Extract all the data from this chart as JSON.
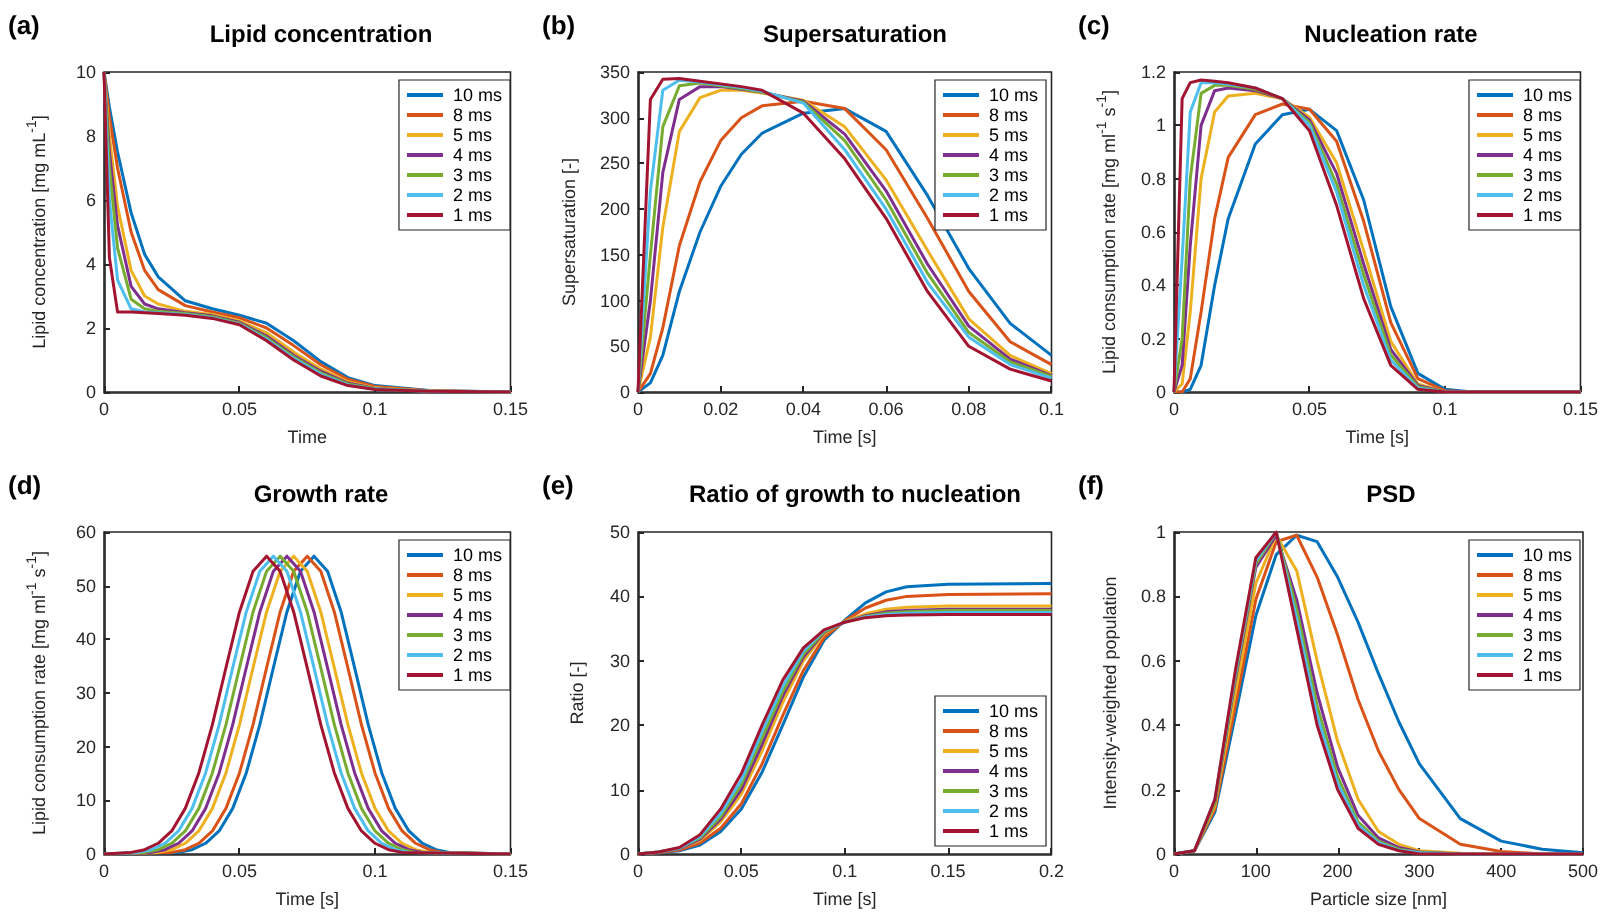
{
  "chart_data": [
    {
      "type": "line",
      "title": "Lipid concentration",
      "annotations": [
        "(a)"
      ],
      "xlabel": "Time",
      "ylabel": "Lipid concentration [mg mL$^{-1}$]",
      "xlim": [
        0,
        0.15
      ],
      "xticks": [
        0,
        0.05,
        0.1,
        0.15
      ],
      "ylim": [
        0,
        10
      ],
      "yticks": [
        0,
        2,
        4,
        6,
        8,
        10
      ],
      "legend": "top right",
      "x": [
        0,
        0.002,
        0.005,
        0.01,
        0.015,
        0.02,
        0.03,
        0.04,
        0.05,
        0.06,
        0.07,
        0.08,
        0.09,
        0.1,
        0.12,
        0.15
      ],
      "series": [
        {
          "name": "10 ms",
          "color": "#0072bd",
          "values": [
            10,
            8.9,
            7.5,
            5.6,
            4.3,
            3.6,
            2.85,
            2.6,
            2.4,
            2.15,
            1.6,
            0.95,
            0.45,
            0.2,
            0.05,
            0
          ]
        },
        {
          "name": "8 ms",
          "color": "#d95319",
          "values": [
            10,
            8.6,
            7,
            5,
            3.8,
            3.2,
            2.7,
            2.5,
            2.32,
            2.0,
            1.45,
            0.85,
            0.4,
            0.17,
            0.04,
            0
          ]
        },
        {
          "name": "5 ms",
          "color": "#edb120",
          "values": [
            10,
            8,
            5.8,
            3.8,
            3.0,
            2.75,
            2.52,
            2.42,
            2.22,
            1.85,
            1.25,
            0.72,
            0.32,
            0.13,
            0.03,
            0
          ]
        },
        {
          "name": "4 ms",
          "color": "#7e2f8e",
          "values": [
            10,
            7.5,
            5.2,
            3.3,
            2.75,
            2.6,
            2.48,
            2.38,
            2.18,
            1.75,
            1.15,
            0.65,
            0.28,
            0.11,
            0.02,
            0
          ]
        },
        {
          "name": "3 ms",
          "color": "#77ac30",
          "values": [
            10,
            7,
            4.5,
            2.9,
            2.6,
            2.52,
            2.45,
            2.35,
            2.15,
            1.7,
            1.1,
            0.6,
            0.25,
            0.1,
            0.02,
            0
          ]
        },
        {
          "name": "2 ms",
          "color": "#4dbeee",
          "values": [
            10,
            6,
            3.5,
            2.6,
            2.5,
            2.48,
            2.42,
            2.32,
            2.12,
            1.65,
            1.05,
            0.55,
            0.22,
            0.09,
            0.02,
            0
          ]
        },
        {
          "name": "1 ms",
          "color": "#a2142f",
          "values": [
            10,
            4.2,
            2.5,
            2.5,
            2.48,
            2.45,
            2.4,
            2.3,
            2.1,
            1.6,
            1.0,
            0.5,
            0.2,
            0.08,
            0.02,
            0
          ]
        }
      ]
    },
    {
      "type": "line",
      "title": "Supersaturation",
      "annotations": [
        "(b)"
      ],
      "xlabel": "Time [s]",
      "ylabel": "Supersaturation [-]",
      "xlim": [
        0,
        0.1
      ],
      "xticks": [
        0,
        0.02,
        0.04,
        0.06,
        0.08,
        0.1
      ],
      "ylim": [
        0,
        350
      ],
      "yticks": [
        0,
        50,
        100,
        150,
        200,
        250,
        300,
        350
      ],
      "legend": "top right",
      "x": [
        0,
        0.003,
        0.006,
        0.01,
        0.015,
        0.02,
        0.025,
        0.03,
        0.04,
        0.05,
        0.06,
        0.07,
        0.08,
        0.09,
        0.1
      ],
      "series": [
        {
          "name": "10 ms",
          "color": "#0072bd",
          "values": [
            0,
            10,
            40,
            110,
            175,
            225,
            260,
            283,
            305,
            310,
            285,
            215,
            135,
            75,
            40
          ]
        },
        {
          "name": "8 ms",
          "color": "#d95319",
          "values": [
            0,
            20,
            70,
            160,
            230,
            275,
            300,
            313,
            318,
            310,
            265,
            190,
            110,
            55,
            30
          ]
        },
        {
          "name": "5 ms",
          "color": "#edb120",
          "values": [
            0,
            60,
            180,
            285,
            322,
            330,
            330,
            327,
            319,
            290,
            232,
            155,
            80,
            40,
            20
          ]
        },
        {
          "name": "4 ms",
          "color": "#7e2f8e",
          "values": [
            0,
            100,
            240,
            320,
            334,
            334,
            331,
            328,
            318,
            282,
            220,
            140,
            72,
            36,
            18
          ]
        },
        {
          "name": "3 ms",
          "color": "#77ac30",
          "values": [
            0,
            150,
            290,
            335,
            338,
            335,
            332,
            328,
            317,
            275,
            210,
            130,
            65,
            33,
            17
          ]
        },
        {
          "name": "2 ms",
          "color": "#4dbeee",
          "values": [
            0,
            220,
            330,
            341,
            339,
            336,
            333,
            329,
            316,
            265,
            200,
            120,
            60,
            30,
            15
          ]
        },
        {
          "name": "1 ms",
          "color": "#a2142f",
          "values": [
            0,
            320,
            342,
            343,
            340,
            337,
            334,
            330,
            305,
            255,
            190,
            110,
            50,
            25,
            12
          ]
        }
      ]
    },
    {
      "type": "line",
      "title": "Nucleation rate",
      "annotations": [
        "(c)"
      ],
      "xlabel": "Time [s]",
      "ylabel": "Lipid consumption rate [mg ml$^{-1}$ s$^{-1}$]",
      "xlim": [
        0,
        0.15
      ],
      "xticks": [
        0,
        0.05,
        0.1,
        0.15
      ],
      "ylim": [
        0,
        1.2
      ],
      "yticks": [
        0,
        0.2,
        0.4,
        0.6,
        0.8,
        1,
        1.2
      ],
      "legend": "top right",
      "x": [
        0,
        0.003,
        0.006,
        0.01,
        0.015,
        0.02,
        0.03,
        0.04,
        0.05,
        0.06,
        0.07,
        0.08,
        0.09,
        0.1,
        0.11,
        0.15
      ],
      "series": [
        {
          "name": "10 ms",
          "color": "#0072bd",
          "values": [
            0,
            0,
            0.01,
            0.1,
            0.4,
            0.65,
            0.93,
            1.04,
            1.06,
            0.98,
            0.72,
            0.32,
            0.07,
            0.01,
            0,
            0
          ]
        },
        {
          "name": "8 ms",
          "color": "#d95319",
          "values": [
            0,
            0,
            0.05,
            0.3,
            0.65,
            0.88,
            1.04,
            1.08,
            1.06,
            0.94,
            0.64,
            0.26,
            0.05,
            0.005,
            0,
            0
          ]
        },
        {
          "name": "5 ms",
          "color": "#edb120",
          "values": [
            0,
            0.03,
            0.3,
            0.8,
            1.05,
            1.11,
            1.12,
            1.1,
            1.03,
            0.86,
            0.53,
            0.19,
            0.03,
            0,
            0,
            0
          ]
        },
        {
          "name": "4 ms",
          "color": "#7e2f8e",
          "values": [
            0,
            0.1,
            0.55,
            1.0,
            1.13,
            1.14,
            1.13,
            1.1,
            1.02,
            0.82,
            0.48,
            0.16,
            0.025,
            0,
            0,
            0
          ]
        },
        {
          "name": "3 ms",
          "color": "#77ac30",
          "values": [
            0,
            0.2,
            0.8,
            1.12,
            1.15,
            1.15,
            1.135,
            1.1,
            1.01,
            0.78,
            0.44,
            0.14,
            0.02,
            0,
            0,
            0
          ]
        },
        {
          "name": "2 ms",
          "color": "#4dbeee",
          "values": [
            0,
            0.5,
            1.05,
            1.16,
            1.16,
            1.155,
            1.14,
            1.1,
            1.0,
            0.75,
            0.4,
            0.12,
            0.015,
            0,
            0,
            0
          ]
        },
        {
          "name": "1 ms",
          "color": "#a2142f",
          "values": [
            0,
            1.1,
            1.16,
            1.17,
            1.165,
            1.16,
            1.14,
            1.1,
            0.98,
            0.7,
            0.35,
            0.1,
            0.01,
            0,
            0,
            0
          ]
        }
      ]
    },
    {
      "type": "line",
      "title": "Growth rate",
      "annotations": [
        "(d)"
      ],
      "xlabel": "Time [s]",
      "ylabel": "Lipid consumption rate [mg ml$^{-1}$ s$^{-1}$]",
      "xlim": [
        0,
        0.15
      ],
      "xticks": [
        0,
        0.05,
        0.1,
        0.15
      ],
      "ylim": [
        0,
        60
      ],
      "yticks": [
        0,
        10,
        20,
        30,
        40,
        50,
        60
      ],
      "legend": "top right",
      "series": [
        {
          "name": "10 ms",
          "color": "#0072bd",
          "x": [
            0,
            0.0275,
            0.0325,
            0.0375,
            0.0425,
            0.0475,
            0.0525,
            0.0575,
            0.0625,
            0.0675,
            0.0725,
            0.0775,
            0.0825,
            0.0875,
            0.0925,
            0.0975,
            0.1025,
            0.1075,
            0.1125,
            0.1175,
            0.1225,
            0.1275,
            0.15
          ],
          "values": [
            0,
            0.3,
            0.8,
            2.0,
            4.3,
            8.5,
            15.1,
            24.1,
            34.7,
            45.1,
            52.7,
            55.5,
            52.7,
            45.1,
            34.7,
            24.1,
            15.1,
            8.5,
            4.3,
            2.0,
            0.8,
            0.3,
            0
          ]
        },
        {
          "name": "8 ms",
          "color": "#d95319",
          "x": [
            0,
            0.025,
            0.03,
            0.035,
            0.04,
            0.045,
            0.05,
            0.055,
            0.06,
            0.065,
            0.07,
            0.075,
            0.08,
            0.085,
            0.09,
            0.095,
            0.1,
            0.105,
            0.11,
            0.115,
            0.12,
            0.125,
            0.15
          ],
          "values": [
            0,
            0.3,
            0.8,
            2.0,
            4.3,
            8.5,
            15.1,
            24.1,
            34.7,
            45.1,
            52.7,
            55.5,
            52.7,
            45.1,
            34.7,
            24.1,
            15.1,
            8.5,
            4.3,
            2.0,
            0.8,
            0.3,
            0
          ]
        },
        {
          "name": "5 ms",
          "color": "#edb120",
          "x": [
            0,
            0.02,
            0.025,
            0.03,
            0.035,
            0.04,
            0.045,
            0.05,
            0.055,
            0.06,
            0.065,
            0.07,
            0.075,
            0.08,
            0.085,
            0.09,
            0.095,
            0.1,
            0.105,
            0.11,
            0.115,
            0.12,
            0.15
          ],
          "values": [
            0,
            0.3,
            0.8,
            2.0,
            4.3,
            8.5,
            15.1,
            24.1,
            34.7,
            45.1,
            52.7,
            55.5,
            52.7,
            45.1,
            34.7,
            24.1,
            15.1,
            8.5,
            4.3,
            2.0,
            0.8,
            0.3,
            0
          ]
        },
        {
          "name": "4 ms",
          "color": "#7e2f8e",
          "x": [
            0,
            0.0175,
            0.0225,
            0.0275,
            0.0325,
            0.0375,
            0.0425,
            0.0475,
            0.0525,
            0.0575,
            0.0625,
            0.0675,
            0.0725,
            0.0775,
            0.0825,
            0.0875,
            0.0925,
            0.0975,
            0.1025,
            0.1075,
            0.1125,
            0.1175,
            0.15
          ],
          "values": [
            0,
            0.3,
            0.8,
            2.0,
            4.3,
            8.5,
            15.1,
            24.1,
            34.7,
            45.1,
            52.7,
            55.5,
            52.7,
            45.1,
            34.7,
            24.1,
            15.1,
            8.5,
            4.3,
            2.0,
            0.8,
            0.3,
            0
          ]
        },
        {
          "name": "3 ms",
          "color": "#77ac30",
          "x": [
            0,
            0.015,
            0.02,
            0.025,
            0.03,
            0.035,
            0.04,
            0.045,
            0.05,
            0.055,
            0.06,
            0.065,
            0.07,
            0.075,
            0.08,
            0.085,
            0.09,
            0.095,
            0.1,
            0.105,
            0.11,
            0.115,
            0.15
          ],
          "values": [
            0,
            0.3,
            0.8,
            2.0,
            4.3,
            8.5,
            15.1,
            24.1,
            34.7,
            45.1,
            52.7,
            55.5,
            52.7,
            45.1,
            34.7,
            24.1,
            15.1,
            8.5,
            4.3,
            2.0,
            0.8,
            0.3,
            0
          ]
        },
        {
          "name": "2 ms",
          "color": "#4dbeee",
          "x": [
            0,
            0.0125,
            0.0175,
            0.0225,
            0.0275,
            0.0325,
            0.0375,
            0.0425,
            0.0475,
            0.0525,
            0.0575,
            0.0625,
            0.0675,
            0.0725,
            0.0775,
            0.0825,
            0.0875,
            0.0925,
            0.0975,
            0.1025,
            0.1075,
            0.1125,
            0.15
          ],
          "values": [
            0,
            0.3,
            0.8,
            2.0,
            4.3,
            8.5,
            15.1,
            24.1,
            34.7,
            45.1,
            52.7,
            55.5,
            52.7,
            45.1,
            34.7,
            24.1,
            15.1,
            8.5,
            4.3,
            2.0,
            0.8,
            0.3,
            0
          ]
        },
        {
          "name": "1 ms",
          "color": "#a2142f",
          "x": [
            0,
            0.01,
            0.015,
            0.02,
            0.025,
            0.03,
            0.035,
            0.04,
            0.045,
            0.05,
            0.055,
            0.06,
            0.065,
            0.07,
            0.075,
            0.08,
            0.085,
            0.09,
            0.095,
            0.1,
            0.105,
            0.11,
            0.15
          ],
          "values": [
            0,
            0.3,
            0.8,
            2.0,
            4.3,
            8.5,
            15.1,
            24.1,
            34.7,
            45.1,
            52.7,
            55.5,
            52.7,
            45.1,
            34.7,
            24.1,
            15.1,
            8.5,
            4.3,
            2.0,
            0.8,
            0.3,
            0
          ]
        }
      ]
    },
    {
      "type": "line",
      "title": "Ratio of growth to nucleation",
      "annotations": [
        "(e)"
      ],
      "xlabel": "Time [s]",
      "ylabel": "Ratio [-]",
      "xlim": [
        0,
        0.2
      ],
      "xticks": [
        0,
        0.05,
        0.1,
        0.15,
        0.2
      ],
      "ylim": [
        0,
        50
      ],
      "yticks": [
        0,
        10,
        20,
        30,
        40,
        50
      ],
      "legend": "bottom right",
      "x": [
        0,
        0.01,
        0.02,
        0.03,
        0.04,
        0.05,
        0.06,
        0.07,
        0.08,
        0.09,
        0.1,
        0.11,
        0.12,
        0.13,
        0.15,
        0.2
      ],
      "series": [
        {
          "name": "10 ms",
          "color": "#0072bd",
          "values": [
            0,
            0.2,
            0.5,
            1.4,
            3.5,
            7,
            12.7,
            20,
            27.5,
            33.2,
            36.3,
            39,
            40.7,
            41.5,
            41.9,
            42
          ]
        },
        {
          "name": "8 ms",
          "color": "#d95319",
          "values": [
            0,
            0.2,
            0.6,
            1.7,
            4,
            7.8,
            14,
            21.5,
            28.5,
            33.6,
            36.2,
            38.2,
            39.4,
            40,
            40.3,
            40.4
          ]
        },
        {
          "name": "5 ms",
          "color": "#edb120",
          "values": [
            0,
            0.3,
            0.8,
            2.1,
            5,
            9.3,
            16,
            23.5,
            30,
            34.2,
            36.1,
            37.3,
            38,
            38.3,
            38.5,
            38.5
          ]
        },
        {
          "name": "4 ms",
          "color": "#7e2f8e",
          "values": [
            0,
            0.3,
            0.8,
            2.3,
            5.4,
            10,
            17,
            24.5,
            30.6,
            34.4,
            36,
            37,
            37.6,
            37.8,
            38,
            38
          ]
        },
        {
          "name": "3 ms",
          "color": "#77ac30",
          "values": [
            0,
            0.3,
            0.9,
            2.5,
            5.8,
            10.8,
            18,
            25.2,
            31,
            34.5,
            36,
            36.9,
            37.4,
            37.6,
            37.8,
            37.8
          ]
        },
        {
          "name": "2 ms",
          "color": "#4dbeee",
          "values": [
            0,
            0.3,
            0.9,
            2.7,
            6.3,
            11.5,
            19,
            26,
            31.5,
            34.7,
            36,
            36.8,
            37.2,
            37.4,
            37.5,
            37.5
          ]
        },
        {
          "name": "1 ms",
          "color": "#a2142f",
          "values": [
            0,
            0.3,
            1,
            3,
            7,
            12.5,
            20,
            27,
            32,
            34.8,
            36,
            36.7,
            37,
            37.1,
            37.2,
            37.2
          ]
        }
      ]
    },
    {
      "type": "line",
      "title": "PSD",
      "annotations": [
        "(f)"
      ],
      "xlabel": "Particle size [nm]",
      "ylabel": "Intensity-weighted population",
      "xlim": [
        0,
        500
      ],
      "xticks": [
        0,
        100,
        200,
        300,
        400,
        500
      ],
      "ylim": [
        0,
        1
      ],
      "yticks": [
        0,
        0.2,
        0.4,
        0.6,
        0.8,
        1
      ],
      "legend": "top right",
      "x": [
        0,
        25,
        50,
        75,
        100,
        125,
        150,
        175,
        200,
        225,
        250,
        275,
        300,
        350,
        400,
        450,
        500
      ],
      "series": [
        {
          "name": "10 ms",
          "color": "#0072bd",
          "values": [
            0,
            0.01,
            0.13,
            0.43,
            0.74,
            0.93,
            0.99,
            0.97,
            0.86,
            0.72,
            0.56,
            0.41,
            0.28,
            0.11,
            0.04,
            0.015,
            0.004
          ]
        },
        {
          "name": "8 ms",
          "color": "#d95319",
          "values": [
            0,
            0.01,
            0.14,
            0.46,
            0.79,
            0.97,
            0.99,
            0.86,
            0.68,
            0.48,
            0.32,
            0.2,
            0.11,
            0.03,
            0.008,
            0,
            0
          ]
        },
        {
          "name": "5 ms",
          "color": "#edb120",
          "values": [
            0,
            0.01,
            0.15,
            0.5,
            0.84,
            0.99,
            0.88,
            0.6,
            0.35,
            0.17,
            0.07,
            0.03,
            0.01,
            0.002,
            0,
            null,
            null
          ]
        },
        {
          "name": "4 ms",
          "color": "#7e2f8e",
          "values": [
            0,
            0.01,
            0.16,
            0.54,
            0.89,
            0.99,
            0.79,
            0.5,
            0.27,
            0.12,
            0.05,
            0.02,
            0.006,
            0,
            null,
            null,
            null
          ]
        },
        {
          "name": "3 ms",
          "color": "#77ac30",
          "values": [
            0,
            0.01,
            0.16,
            0.55,
            0.9,
            1.0,
            0.76,
            0.46,
            0.24,
            0.1,
            0.04,
            0.015,
            0.005,
            0,
            null,
            null,
            null
          ]
        },
        {
          "name": "2 ms",
          "color": "#4dbeee",
          "values": [
            0,
            0.01,
            0.17,
            0.56,
            0.91,
            1.0,
            0.73,
            0.43,
            0.22,
            0.09,
            0.035,
            0.012,
            0.004,
            0,
            0,
            0,
            0
          ]
        },
        {
          "name": "1 ms",
          "color": "#a2142f",
          "values": [
            0,
            0.01,
            0.17,
            0.57,
            0.92,
            1.0,
            0.7,
            0.4,
            0.2,
            0.08,
            0.03,
            0.01,
            0,
            0,
            0,
            0,
            0
          ]
        }
      ]
    }
  ]
}
